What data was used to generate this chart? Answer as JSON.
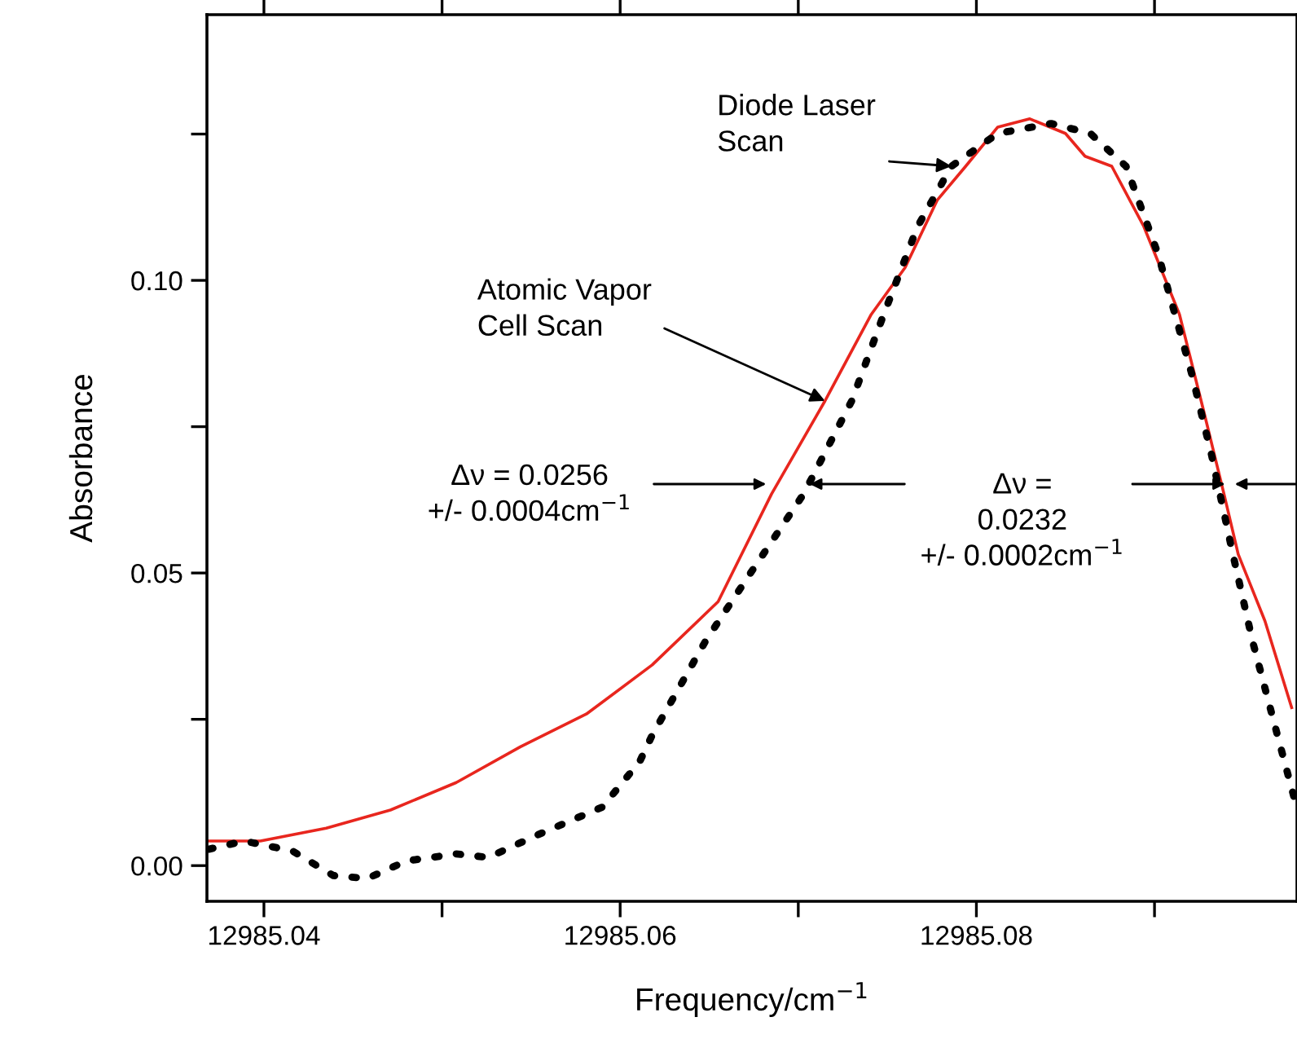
{
  "chart_data": {
    "type": "line",
    "xlabel": "Frequency/cm$^{−1}$",
    "ylabel": "Absorbance",
    "xlim": [
      12985.0368,
      12985.098
    ],
    "ylim": [
      -0.0061,
      0.1454
    ],
    "xticks": [
      {
        "value": 12985.04,
        "label": "12985.04"
      },
      {
        "value": 12985.05,
        "label": null
      },
      {
        "value": 12985.06,
        "label": "12985.06"
      },
      {
        "value": 12985.07,
        "label": null
      },
      {
        "value": 12985.08,
        "label": "12985.08"
      },
      {
        "value": 12985.09,
        "label": null
      }
    ],
    "yticks": [
      {
        "value": 0,
        "label": "0.00"
      },
      {
        "value": 0.025,
        "label": null
      },
      {
        "value": 0.05,
        "label": "0.05"
      },
      {
        "value": 0.075,
        "label": null
      },
      {
        "value": 0.1,
        "label": "0.10"
      },
      {
        "value": 0.125,
        "label": null
      }
    ],
    "grid": false,
    "legend": false,
    "series": [
      {
        "color": "#e8261e",
        "line_style": "solid",
        "x": [
          12985.0369,
          12985.0398,
          12985.0435,
          12985.0471,
          12985.0508,
          12985.0544,
          12985.0581,
          12985.0618,
          12985.0655,
          12985.0685,
          12985.0715,
          12985.0741,
          12985.076,
          12985.0778,
          12985.0794,
          12985.0812,
          12985.083,
          12985.085,
          12985.0861,
          12985.0876,
          12985.0894,
          12985.0914,
          12985.0928,
          12985.0939,
          12985.0947,
          12985.0962,
          12985.0977
        ],
        "values": [
          0.0042,
          0.0042,
          0.0064,
          0.0095,
          0.0142,
          0.0203,
          0.0259,
          0.0343,
          0.0451,
          0.0635,
          0.0794,
          0.0942,
          0.1022,
          0.1137,
          0.1195,
          0.1262,
          0.1276,
          0.1251,
          0.1212,
          0.1195,
          0.1092,
          0.0942,
          0.0772,
          0.0635,
          0.0532,
          0.0418,
          0.027
        ]
      },
      {
        "color": "#000000",
        "line_style": "dotted",
        "x": [
          12985.0369,
          12985.0389,
          12985.0416,
          12985.0439,
          12985.0458,
          12985.048,
          12985.0508,
          12985.0526,
          12985.0554,
          12985.059,
          12985.0611,
          12985.0618,
          12985.0648,
          12985.0673,
          12985.0703,
          12985.073,
          12985.0748,
          12985.0767,
          12985.0786,
          12985.0812,
          12985.0842,
          12985.0864,
          12985.0884,
          12985.0902,
          12985.0921,
          12985.0932,
          12985.0944,
          12985.0955,
          12985.0969,
          12985.0979
        ],
        "values": [
          0.0028,
          0.0042,
          0.0025,
          -0.0017,
          -0.0022,
          0.0008,
          0.002,
          0.0014,
          0.0053,
          0.01,
          0.0178,
          0.0223,
          0.0384,
          0.0499,
          0.0635,
          0.0794,
          0.0942,
          0.1092,
          0.1195,
          0.1251,
          0.1268,
          0.1251,
          0.1195,
          0.1045,
          0.0839,
          0.0702,
          0.0532,
          0.0384,
          0.0223,
          0.0109
        ]
      }
    ],
    "annotations": [
      {
        "text": "Diode Laser\nScan",
        "x": 12985.0786,
        "y": 0.1195
      },
      {
        "text": "Atomic Vapor\nCell Scan",
        "x": 12985.0715,
        "y": 0.0794
      },
      "Δν = 0.0256\n+/- 0.0004cm$^{−1}$",
      "Δν =\n0.0232\n+/- 0.0002cm$^{−1}$"
    ]
  }
}
